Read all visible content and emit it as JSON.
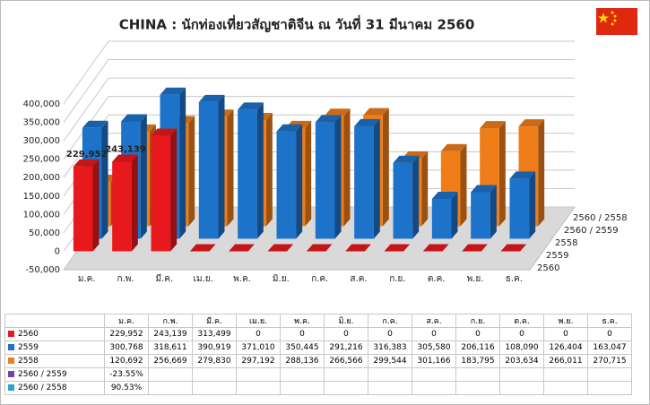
{
  "chart_data": {
    "type": "bar",
    "title": "CHINA :  นักท่องเที่ยวสัญชาติจีน  ณ วันที่ 31 มีนาคม  2560",
    "categories": [
      "ม.ค.",
      "ก.พ.",
      "มี.ค.",
      "เม.ย.",
      "พ.ค.",
      "มิ.ย.",
      "ก.ค.",
      "ส.ค.",
      "ก.ย.",
      "ต.ค.",
      "พ.ย.",
      "ธ.ค."
    ],
    "series": [
      {
        "name": "2560",
        "color": "#e8191c",
        "values": [
          229952,
          243139,
          313499,
          0,
          0,
          0,
          0,
          0,
          0,
          0,
          0,
          0
        ],
        "value_labels": [
          "229,952",
          "243,139",
          "313,499",
          "0",
          "0",
          "0",
          "0",
          "0",
          "0",
          "0",
          "0",
          "0"
        ]
      },
      {
        "name": "2559",
        "color": "#1d72c9",
        "values": [
          300768,
          318611,
          390919,
          371010,
          350445,
          291216,
          316383,
          305580,
          206116,
          108090,
          126404,
          163047
        ],
        "value_labels": [
          "300,768",
          "318,611",
          "390,919",
          "371,010",
          "350,445",
          "291,216",
          "316,383",
          "305,580",
          "206,116",
          "108,090",
          "126,404",
          "163,047"
        ]
      },
      {
        "name": "2558",
        "color": "#ef7d1a",
        "values": [
          120692,
          256669,
          279830,
          297192,
          288136,
          266566,
          299544,
          301166,
          183795,
          203634,
          266011,
          270715
        ],
        "value_labels": [
          "120,692",
          "256,669",
          "279,830",
          "297,192",
          "288,136",
          "266,566",
          "299,544",
          "301,166",
          "183,795",
          "203,634",
          "266,011",
          "270,715"
        ]
      },
      {
        "name": "2560 / 2559",
        "color": "#7a3fa0",
        "values": [
          -23.55,
          null,
          null,
          null,
          null,
          null,
          null,
          null,
          null,
          null,
          null,
          null
        ],
        "value_labels": [
          "-23.55%",
          null,
          null,
          null,
          null,
          null,
          null,
          null,
          null,
          null,
          null,
          null
        ]
      },
      {
        "name": "2560 / 2558",
        "color": "#2aa5c9",
        "values": [
          90.53,
          null,
          null,
          null,
          null,
          null,
          null,
          null,
          null,
          null,
          null,
          null
        ],
        "value_labels": [
          "90.53%",
          null,
          null,
          null,
          null,
          null,
          null,
          null,
          null,
          null,
          null,
          null
        ]
      }
    ],
    "ylim": [
      -50000,
      400000
    ],
    "yticks": [
      {
        "value": -50000,
        "label": "-50,000"
      },
      0,
      {
        "value": 50000,
        "label": "50,000"
      },
      {
        "value": 100000,
        "label": "100,000"
      },
      {
        "value": 150000,
        "label": "150,000"
      },
      {
        "value": 200000,
        "label": "200,000"
      },
      {
        "value": 250000,
        "label": "250,000"
      },
      {
        "value": 300000,
        "label": "300,000"
      },
      {
        "value": 350000,
        "label": "350,000"
      },
      {
        "value": 400000,
        "label": "400,000"
      }
    ],
    "grid": true
  }
}
